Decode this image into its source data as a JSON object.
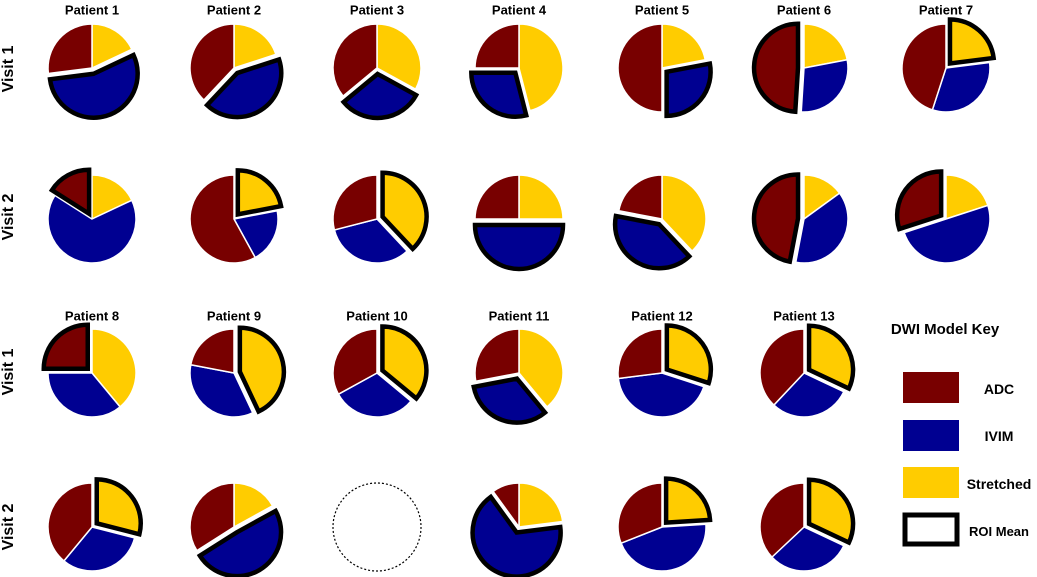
{
  "colors": {
    "ADC": "#780000",
    "IVIM": "#000091",
    "Stretched": "#FFCC00",
    "outline": "#000000",
    "separator": "#ffffff"
  },
  "legend": {
    "title": "DWI Model Key",
    "items": [
      {
        "label": "ADC",
        "color": "#780000"
      },
      {
        "label": "IVIM",
        "color": "#000091"
      },
      {
        "label": "Stretched",
        "color": "#FFCC00"
      },
      {
        "label": "ROI Mean",
        "color": "#ffffff"
      }
    ]
  },
  "chart_data": {
    "type": "pie",
    "visit_labels": [
      "Visit 1",
      "Visit 2",
      "Visit 1",
      "Visit 2"
    ],
    "category_order": [
      "Stretched",
      "IVIM",
      "ADC"
    ],
    "patients": [
      {
        "name": "Patient 1",
        "visit1": {
          "values": [
            0.18,
            0.55,
            0.27
          ],
          "highlight": "IVIM"
        },
        "visit2": {
          "values": [
            0.18,
            0.66,
            0.16
          ],
          "highlight": "ADC"
        }
      },
      {
        "name": "Patient 2",
        "visit1": {
          "values": [
            0.2,
            0.42,
            0.38
          ],
          "highlight": "IVIM"
        },
        "visit2": {
          "values": [
            0.22,
            0.2,
            0.58
          ],
          "highlight": "Stretched"
        }
      },
      {
        "name": "Patient 3",
        "visit1": {
          "values": [
            0.33,
            0.31,
            0.36
          ],
          "highlight": "IVIM"
        },
        "visit2": {
          "values": [
            0.38,
            0.33,
            0.29
          ],
          "highlight": "Stretched"
        }
      },
      {
        "name": "Patient 4",
        "visit1": {
          "values": [
            0.46,
            0.29,
            0.25
          ],
          "highlight": "IVIM"
        },
        "visit2": {
          "values": [
            0.25,
            0.5,
            0.25
          ],
          "highlight": "IVIM"
        }
      },
      {
        "name": "Patient 5",
        "visit1": {
          "values": [
            0.22,
            0.28,
            0.5
          ],
          "highlight": "IVIM"
        },
        "visit2": {
          "values": [
            0.38,
            0.4,
            0.22
          ],
          "highlight": "IVIM"
        }
      },
      {
        "name": "Patient 6",
        "visit1": {
          "values": [
            0.22,
            0.29,
            0.49
          ],
          "highlight": "ADC"
        },
        "visit2": {
          "values": [
            0.15,
            0.38,
            0.47
          ],
          "highlight": "ADC"
        }
      },
      {
        "name": "Patient 7",
        "visit1": {
          "values": [
            0.23,
            0.32,
            0.45
          ],
          "highlight": "Stretched"
        },
        "visit2": {
          "values": [
            0.2,
            0.5,
            0.3
          ],
          "highlight": "ADC"
        }
      },
      {
        "name": "Patient 8",
        "visit1": {
          "values": [
            0.39,
            0.36,
            0.25
          ],
          "highlight": "ADC"
        },
        "visit2": null
      },
      {
        "name": "Patient 9",
        "visit1": {
          "values": [
            0.43,
            0.35,
            0.22
          ],
          "highlight": "Stretched"
        },
        "visit2": null
      },
      {
        "name": "Patient 10",
        "visit1": {
          "values": [
            0.36,
            0.31,
            0.33
          ],
          "highlight": "Stretched"
        },
        "visit2": null
      },
      {
        "name": "Patient 11",
        "visit1": {
          "values": [
            0.39,
            0.33,
            0.28
          ],
          "highlight": "IVIM"
        },
        "visit2": null
      },
      {
        "name": "Patient 12",
        "visit1": {
          "values": [
            0.3,
            0.43,
            0.27
          ],
          "highlight": "Stretched"
        },
        "visit2": null
      },
      {
        "name": "Patient 13",
        "visit1": {
          "values": [
            0.32,
            0.3,
            0.38
          ],
          "highlight": "Stretched"
        },
        "visit2": null
      }
    ],
    "bottom_visit2": [
      {
        "patient": "Patient 8",
        "values": [
          0.29,
          0.32,
          0.39
        ],
        "highlight": "Stretched",
        "missing": false
      },
      {
        "patient": "Patient 9",
        "values": [
          0.17,
          0.49,
          0.34
        ],
        "highlight": "IVIM",
        "missing": false
      },
      {
        "patient": "Patient 10",
        "values": [],
        "highlight": "",
        "missing": true
      },
      {
        "patient": "Patient 11",
        "values": [
          0.23,
          0.67,
          0.1
        ],
        "highlight": "IVIM",
        "missing": false
      },
      {
        "patient": "Patient 12",
        "values": [
          0.24,
          0.45,
          0.31
        ],
        "highlight": "Stretched",
        "missing": false
      },
      {
        "patient": "Patient 13",
        "values": [
          0.32,
          0.31,
          0.37
        ],
        "highlight": "Stretched",
        "missing": false
      }
    ]
  }
}
